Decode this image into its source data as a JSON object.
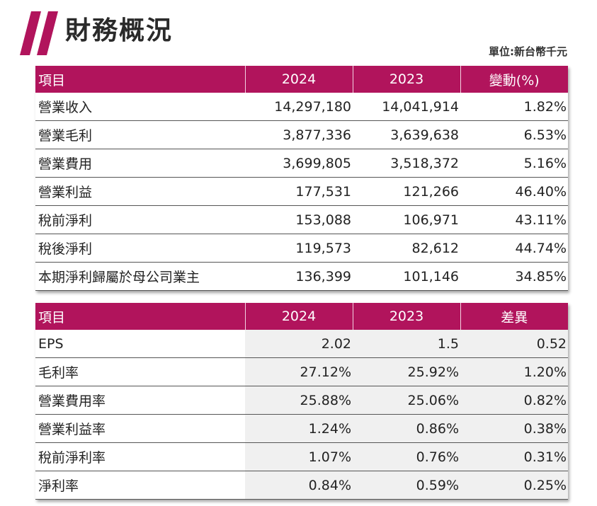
{
  "header": {
    "title": "財務概況",
    "unit": "單位:新台幣千元"
  },
  "colors": {
    "header_bg": "#b1145c",
    "header_text": "#ffffff",
    "logo": "#b1145c"
  },
  "icons": {
    "logo": "slanted-double-bar-icon"
  },
  "income_table": {
    "headers": [
      "項目",
      "2024",
      "2023",
      "變動(%)"
    ],
    "rows": [
      [
        "營業收入",
        "14,297,180",
        "14,041,914",
        "1.82%"
      ],
      [
        "營業毛利",
        "3,877,336",
        "3,639,638",
        "6.53%"
      ],
      [
        "營業費用",
        "3,699,805",
        "3,518,372",
        "5.16%"
      ],
      [
        "營業利益",
        "177,531",
        "121,266",
        "46.40%"
      ],
      [
        "稅前淨利",
        "153,088",
        "106,971",
        "43.11%"
      ],
      [
        "稅後淨利",
        "119,573",
        "82,612",
        "44.74%"
      ],
      [
        "本期淨利歸屬於母公司業主",
        "136,399",
        "101,146",
        "34.85%"
      ]
    ]
  },
  "ratio_table": {
    "headers": [
      "項目",
      "2024",
      "2023",
      "差異"
    ],
    "rows": [
      [
        "EPS",
        "2.02",
        "1.5",
        "0.52"
      ],
      [
        "毛利率",
        "27.12%",
        "25.92%",
        "1.20%"
      ],
      [
        "營業費用率",
        "25.88%",
        "25.06%",
        "0.82%"
      ],
      [
        "營業利益率",
        "1.24%",
        "0.86%",
        "0.38%"
      ],
      [
        "稅前淨利率",
        "1.07%",
        "0.76%",
        "0.31%"
      ],
      [
        "淨利率",
        "0.84%",
        "0.59%",
        "0.25%"
      ]
    ]
  }
}
